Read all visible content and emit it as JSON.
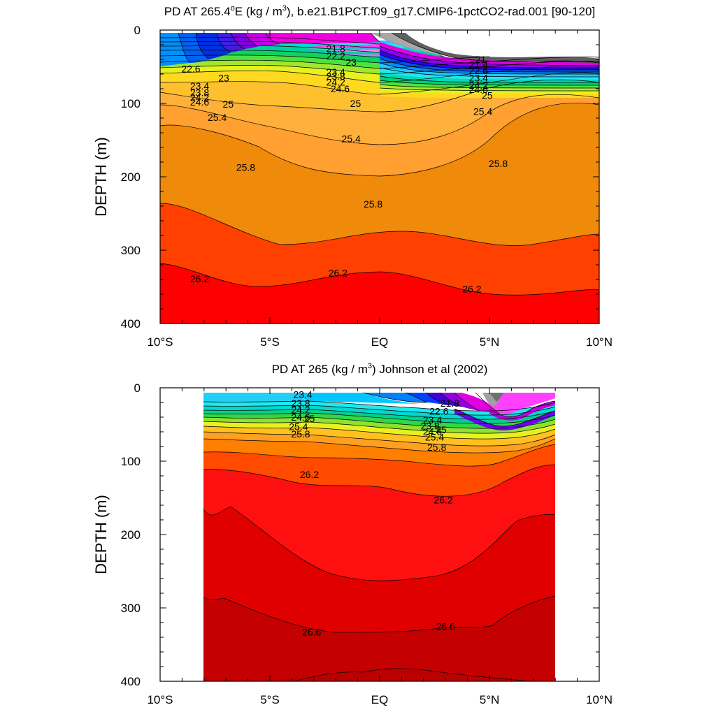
{
  "chart_data": [
    {
      "type": "contour",
      "title_prefix": "PD AT 265.4",
      "title_degree": "o",
      "title_middle": "E (kg / m",
      "title_power": "3",
      "title_suffix": "), b.e21.B1PCT.f09_g17.CMIP6-1pctCO2-rad.001 [90-120]",
      "ylabel": "DEPTH (m)",
      "x_ticks": [
        {
          "label": "10°S",
          "lat": -10
        },
        {
          "label": "5°S",
          "lat": -5
        },
        {
          "label": "EQ",
          "lat": 0
        },
        {
          "label": "5°N",
          "lat": 5
        },
        {
          "label": "10°N",
          "lat": 10
        }
      ],
      "y_ticks": [
        "0",
        "100",
        "200",
        "300",
        "400"
      ],
      "xlim": [
        -10,
        10
      ],
      "ylim": [
        0,
        400
      ],
      "depth_axis_inverted": true,
      "contour_labels": [
        {
          "text": "21.8",
          "lat": -2.0,
          "depth": 25
        },
        {
          "text": "22.2",
          "lat": -2.0,
          "depth": 35
        },
        {
          "text": "23",
          "lat": -1.3,
          "depth": 44
        },
        {
          "text": "22.6",
          "lat": -8.6,
          "depth": 53
        },
        {
          "text": "23",
          "lat": -7.1,
          "depth": 65
        },
        {
          "text": "23.4",
          "lat": -2.0,
          "depth": 57
        },
        {
          "text": "23.8",
          "lat": -2.0,
          "depth": 63
        },
        {
          "text": "24.2",
          "lat": -2.0,
          "depth": 71
        },
        {
          "text": "24.6",
          "lat": -1.8,
          "depth": 80
        },
        {
          "text": "23.4",
          "lat": -8.2,
          "depth": 76
        },
        {
          "text": "23.8",
          "lat": -8.2,
          "depth": 85
        },
        {
          "text": "24.2",
          "lat": -8.2,
          "depth": 92
        },
        {
          "text": "24.6",
          "lat": -8.2,
          "depth": 98
        },
        {
          "text": "25",
          "lat": -6.9,
          "depth": 101
        },
        {
          "text": "25.4",
          "lat": -7.4,
          "depth": 119
        },
        {
          "text": "25",
          "lat": -1.1,
          "depth": 100
        },
        {
          "text": "21",
          "lat": 4.6,
          "depth": 40
        },
        {
          "text": "21.4",
          "lat": 4.5,
          "depth": 47
        },
        {
          "text": "22.6",
          "lat": 4.5,
          "depth": 55
        },
        {
          "text": "23.4",
          "lat": 4.5,
          "depth": 65
        },
        {
          "text": "24.2",
          "lat": 4.5,
          "depth": 75
        },
        {
          "text": "24.6",
          "lat": 4.5,
          "depth": 81
        },
        {
          "text": "25",
          "lat": 4.9,
          "depth": 89
        },
        {
          "text": "25.4",
          "lat": 4.7,
          "depth": 111
        },
        {
          "text": "25.4",
          "lat": -1.3,
          "depth": 148
        },
        {
          "text": "25.8",
          "lat": -6.1,
          "depth": 187
        },
        {
          "text": "25.8",
          "lat": -0.3,
          "depth": 237
        },
        {
          "text": "25.8",
          "lat": 5.4,
          "depth": 182
        },
        {
          "text": "26.2",
          "lat": -8.2,
          "depth": 339
        },
        {
          "text": "26.2",
          "lat": -1.9,
          "depth": 331
        },
        {
          "text": "26.2",
          "lat": 4.2,
          "depth": 353
        }
      ]
    },
    {
      "type": "contour",
      "title_prefix": "PD AT 265 (kg / m",
      "title_power": "3",
      "title_suffix": ") Johnson et al (2002)",
      "ylabel": "DEPTH (m)",
      "x_ticks": [
        {
          "label": "10°S",
          "lat": -10
        },
        {
          "label": "5°S",
          "lat": -5
        },
        {
          "label": "EQ",
          "lat": 0
        },
        {
          "label": "5°N",
          "lat": 5
        },
        {
          "label": "10°N",
          "lat": 10
        }
      ],
      "y_ticks": [
        "0",
        "100",
        "200",
        "300",
        "400"
      ],
      "xlim": [
        -10,
        10
      ],
      "ylim": [
        0,
        400
      ],
      "depth_axis_inverted": true,
      "data_extent_lat": [
        -8,
        8
      ],
      "contour_labels": [
        {
          "text": "23.4",
          "lat": -3.5,
          "depth": 9
        },
        {
          "text": "23.8",
          "lat": -3.6,
          "depth": 21
        },
        {
          "text": "24.2",
          "lat": -3.6,
          "depth": 30
        },
        {
          "text": "24.6",
          "lat": -3.6,
          "depth": 40
        },
        {
          "text": "25",
          "lat": -3.2,
          "depth": 42
        },
        {
          "text": "25.4",
          "lat": -3.7,
          "depth": 53
        },
        {
          "text": "25.8",
          "lat": -3.6,
          "depth": 63
        },
        {
          "text": "21.8",
          "lat": 3.2,
          "depth": 21
        },
        {
          "text": "22.6",
          "lat": 2.7,
          "depth": 32
        },
        {
          "text": "23.4",
          "lat": 2.4,
          "depth": 44
        },
        {
          "text": "23.8",
          "lat": 2.3,
          "depth": 52
        },
        {
          "text": "24.6",
          "lat": 2.4,
          "depth": 60
        },
        {
          "text": "25",
          "lat": 2.8,
          "depth": 57
        },
        {
          "text": "25.4",
          "lat": 2.5,
          "depth": 67
        },
        {
          "text": "25.8",
          "lat": 2.6,
          "depth": 81
        },
        {
          "text": "26.2",
          "lat": -3.2,
          "depth": 118
        },
        {
          "text": "26.2",
          "lat": 2.9,
          "depth": 153
        },
        {
          "text": "26.6",
          "lat": -3.1,
          "depth": 333
        },
        {
          "text": "26.6",
          "lat": 3.0,
          "depth": 325
        }
      ]
    }
  ]
}
